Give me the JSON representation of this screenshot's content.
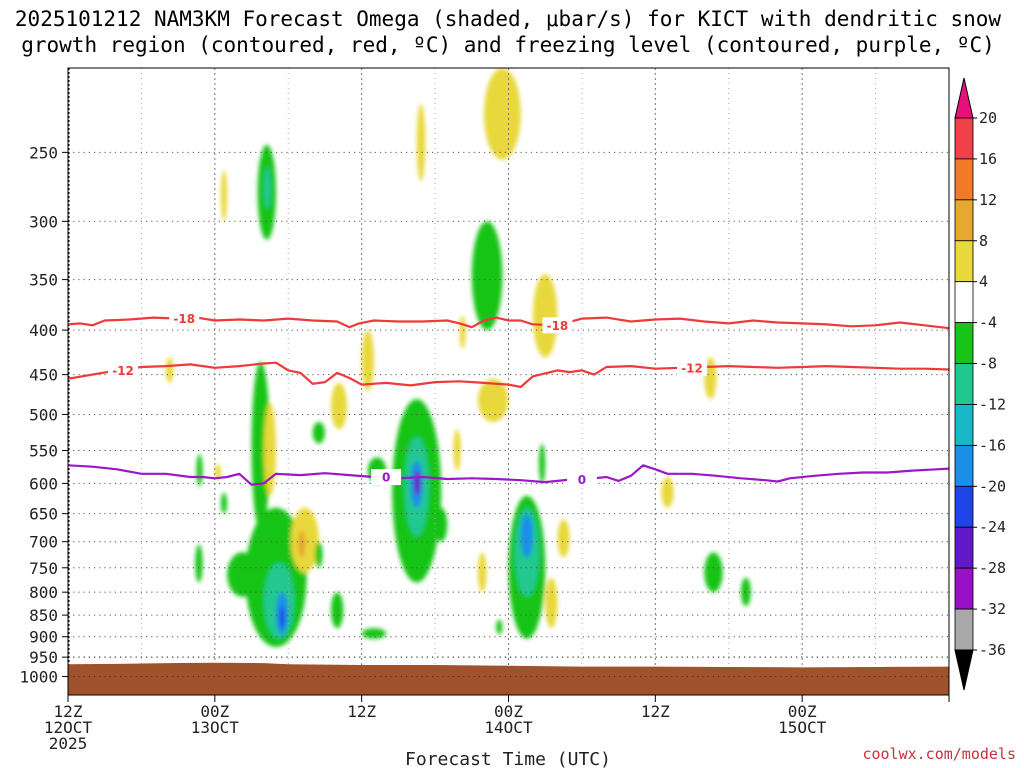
{
  "title": {
    "line1": "2025101212 NAM3KM Forecast Omega (shaded, μbar/s) for KICT with dendritic snow",
    "line2": "growth region (contoured, red, ºC) and freezing level (contoured, purple, ºC)"
  },
  "credit": "coolwx.com/models",
  "chart_data": {
    "type": "heatmap",
    "xlabel": "Forecast Time (UTC)",
    "x_axis": {
      "range_hours": [
        0,
        72
      ],
      "ticks": [
        {
          "hour": 0,
          "lines": [
            "12Z",
            "12OCT",
            "2025"
          ]
        },
        {
          "hour": 12,
          "lines": [
            "00Z",
            "13OCT"
          ]
        },
        {
          "hour": 24,
          "lines": [
            "12Z"
          ]
        },
        {
          "hour": 36,
          "lines": [
            "00Z",
            "14OCT"
          ]
        },
        {
          "hour": 48,
          "lines": [
            "12Z"
          ]
        },
        {
          "hour": 60,
          "lines": [
            "00Z",
            "15OCT"
          ]
        }
      ],
      "minor_grid_every_hours": 6
    },
    "y_axis": {
      "unit": "hPa",
      "range": [
        200,
        1050
      ],
      "log_scale": true,
      "inverted": true,
      "ticks": [
        250,
        300,
        350,
        400,
        450,
        500,
        550,
        600,
        650,
        700,
        750,
        800,
        850,
        900,
        950,
        1000
      ]
    },
    "grid": true,
    "colorbar": {
      "levels": [
        -36,
        -32,
        -28,
        -24,
        -20,
        -16,
        -12,
        -8,
        -4,
        4,
        8,
        12,
        16,
        20
      ],
      "label_values": [
        "20",
        "16",
        "12",
        "8",
        "4",
        "-4",
        "-8",
        "-12",
        "-16",
        "-20",
        "-24",
        "-28",
        "-32",
        "-36"
      ],
      "bins_top_to_bottom": [
        {
          "range": [
            16,
            20
          ],
          "color": "#f0404a"
        },
        {
          "range": [
            12,
            16
          ],
          "color": "#f07a28"
        },
        {
          "range": [
            8,
            12
          ],
          "color": "#e6a82e"
        },
        {
          "range": [
            4,
            8
          ],
          "color": "#e8d83a"
        },
        {
          "range": [
            -4,
            4
          ],
          "color": "#ffffff"
        },
        {
          "range": [
            -8,
            -4
          ],
          "color": "#18c418"
        },
        {
          "range": [
            -12,
            -8
          ],
          "color": "#20c890"
        },
        {
          "range": [
            -16,
            -12
          ],
          "color": "#18b8c8"
        },
        {
          "range": [
            -20,
            -16
          ],
          "color": "#1a8ee8"
        },
        {
          "range": [
            -24,
            -20
          ],
          "color": "#1f44e8"
        },
        {
          "range": [
            -28,
            -24
          ],
          "color": "#6018c8"
        },
        {
          "range": [
            -32,
            -28
          ],
          "color": "#9a10c4"
        },
        {
          "range": [
            -36,
            -32
          ],
          "color": "#a8a8a8"
        }
      ],
      "over_color": "#e8107a",
      "under_color": "#000000"
    },
    "contours": [
      {
        "level_label": "-18",
        "color": "#ee3a3a",
        "label_positions_hours": [
          9.5,
          40
        ],
        "points": [
          [
            0,
            394
          ],
          [
            1,
            393
          ],
          [
            2,
            395
          ],
          [
            3,
            390
          ],
          [
            5,
            389
          ],
          [
            7,
            387
          ],
          [
            9,
            388
          ],
          [
            10,
            386
          ],
          [
            12,
            390
          ],
          [
            14,
            389
          ],
          [
            16,
            390
          ],
          [
            18,
            388
          ],
          [
            20,
            390
          ],
          [
            22,
            391
          ],
          [
            23,
            397
          ],
          [
            23.8,
            393
          ],
          [
            25,
            390
          ],
          [
            27,
            391
          ],
          [
            29,
            391
          ],
          [
            31,
            390
          ],
          [
            32,
            393
          ],
          [
            33,
            397
          ],
          [
            34,
            390
          ],
          [
            35,
            387
          ],
          [
            36,
            390
          ],
          [
            37,
            390
          ],
          [
            38,
            394
          ],
          [
            40,
            395
          ],
          [
            42,
            388
          ],
          [
            44,
            387
          ],
          [
            46,
            391
          ],
          [
            48,
            389
          ],
          [
            50,
            388
          ],
          [
            52,
            391
          ],
          [
            54,
            393
          ],
          [
            56,
            390
          ],
          [
            58,
            392
          ],
          [
            60,
            393
          ],
          [
            62,
            394
          ],
          [
            64,
            396
          ],
          [
            66,
            395
          ],
          [
            68,
            392
          ],
          [
            70,
            395
          ],
          [
            72,
            398
          ]
        ]
      },
      {
        "level_label": "-12",
        "color": "#ee3a3a",
        "label_positions_hours": [
          4.5,
          51
        ],
        "points": [
          [
            0,
            455
          ],
          [
            2,
            450
          ],
          [
            4,
            445
          ],
          [
            6,
            441
          ],
          [
            8,
            440
          ],
          [
            10,
            438
          ],
          [
            12,
            442
          ],
          [
            14,
            440
          ],
          [
            16,
            437
          ],
          [
            17,
            436
          ],
          [
            18,
            445
          ],
          [
            19,
            448
          ],
          [
            20,
            461
          ],
          [
            21,
            459
          ],
          [
            22,
            448
          ],
          [
            23,
            454
          ],
          [
            24,
            462
          ],
          [
            26,
            460
          ],
          [
            28,
            463
          ],
          [
            30,
            459
          ],
          [
            32,
            458
          ],
          [
            34,
            460
          ],
          [
            36,
            462
          ],
          [
            37,
            465
          ],
          [
            38,
            452
          ],
          [
            40,
            445
          ],
          [
            41,
            447
          ],
          [
            42,
            445
          ],
          [
            43,
            450
          ],
          [
            44,
            441
          ],
          [
            46,
            440
          ],
          [
            48,
            443
          ],
          [
            50,
            442
          ],
          [
            52,
            441
          ],
          [
            54,
            440
          ],
          [
            56,
            441
          ],
          [
            58,
            442
          ],
          [
            60,
            441
          ],
          [
            62,
            440
          ],
          [
            64,
            441
          ],
          [
            66,
            442
          ],
          [
            68,
            443
          ],
          [
            70,
            443
          ],
          [
            72,
            444
          ]
        ]
      },
      {
        "level_label": "0",
        "color": "#9a18c8",
        "label_positions_hours": [
          26,
          42
        ],
        "points": [
          [
            0,
            572
          ],
          [
            2,
            574
          ],
          [
            4,
            578
          ],
          [
            6,
            585
          ],
          [
            8,
            585
          ],
          [
            10,
            590
          ],
          [
            11,
            590
          ],
          [
            12,
            592
          ],
          [
            13,
            590
          ],
          [
            14,
            585
          ],
          [
            15,
            602
          ],
          [
            16,
            600
          ],
          [
            17,
            585
          ],
          [
            19,
            587
          ],
          [
            21,
            584
          ],
          [
            23,
            587
          ],
          [
            25,
            590
          ],
          [
            27,
            592
          ],
          [
            29,
            590
          ],
          [
            31,
            593
          ],
          [
            33,
            592
          ],
          [
            35,
            593
          ],
          [
            37,
            595
          ],
          [
            39,
            598
          ],
          [
            41,
            594
          ],
          [
            43,
            592
          ],
          [
            44,
            590
          ],
          [
            45,
            596
          ],
          [
            46,
            588
          ],
          [
            47,
            572
          ],
          [
            48,
            578
          ],
          [
            49,
            585
          ],
          [
            51,
            585
          ],
          [
            53,
            588
          ],
          [
            55,
            592
          ],
          [
            57,
            595
          ],
          [
            58,
            597
          ],
          [
            59,
            592
          ],
          [
            61,
            588
          ],
          [
            63,
            585
          ],
          [
            65,
            583
          ],
          [
            67,
            583
          ],
          [
            69,
            580
          ],
          [
            71,
            578
          ],
          [
            72,
            577
          ]
        ]
      }
    ],
    "terrain": {
      "color": "#a0522d",
      "description_points_hpa": [
        [
          0,
          968
        ],
        [
          4,
          967
        ],
        [
          8,
          965
        ],
        [
          12,
          964
        ],
        [
          16,
          965
        ],
        [
          18,
          968
        ],
        [
          24,
          970
        ],
        [
          30,
          970
        ],
        [
          36,
          972
        ],
        [
          42,
          974
        ],
        [
          48,
          974
        ],
        [
          54,
          975
        ],
        [
          60,
          976
        ],
        [
          66,
          975
        ],
        [
          72,
          974
        ]
      ]
    },
    "omega_features": [
      {
        "hours": [
          12.5,
          13.0
        ],
        "p": [
          262,
          300
        ],
        "omega": 5
      },
      {
        "hours": [
          15.5,
          17.0
        ],
        "p": [
          245,
          315
        ],
        "omega": -6
      },
      {
        "hours": [
          16.0,
          16.6
        ],
        "p": [
          260,
          290
        ],
        "omega": -10
      },
      {
        "hours": [
          34.0,
          37.0
        ],
        "p": [
          200,
          255
        ],
        "omega": 5
      },
      {
        "hours": [
          28.5,
          29.2
        ],
        "p": [
          220,
          270
        ],
        "omega": 5
      },
      {
        "hours": [
          33.0,
          35.5
        ],
        "p": [
          300,
          400
        ],
        "omega": -6
      },
      {
        "hours": [
          38.0,
          40.0
        ],
        "p": [
          345,
          430
        ],
        "omega": 5
      },
      {
        "hours": [
          32.0,
          32.5
        ],
        "p": [
          385,
          420
        ],
        "omega": 5
      },
      {
        "hours": [
          33.5,
          36.0
        ],
        "p": [
          455,
          510
        ],
        "omega": 5
      },
      {
        "hours": [
          15.0,
          16.5
        ],
        "p": [
          435,
          680
        ],
        "omega": -6
      },
      {
        "hours": [
          16.0,
          17.0
        ],
        "p": [
          485,
          620
        ],
        "omega": 5
      },
      {
        "hours": [
          14.5,
          19.5
        ],
        "p": [
          640,
          925
        ],
        "omega": -6
      },
      {
        "hours": [
          16.0,
          18.5
        ],
        "p": [
          740,
          905
        ],
        "omega": -10
      },
      {
        "hours": [
          17.0,
          18.0
        ],
        "p": [
          800,
          895
        ],
        "omega": -18
      },
      {
        "hours": [
          17.3,
          17.7
        ],
        "p": [
          830,
          880
        ],
        "omega": -24
      },
      {
        "hours": [
          18.2,
          20.5
        ],
        "p": [
          640,
          760
        ],
        "omega": 5
      },
      {
        "hours": [
          18.8,
          19.4
        ],
        "p": [
          680,
          730
        ],
        "omega": 9
      },
      {
        "hours": [
          20.0,
          21.0
        ],
        "p": [
          510,
          540
        ],
        "omega": -6
      },
      {
        "hours": [
          20.2,
          20.8
        ],
        "p": [
          700,
          750
        ],
        "omega": -6
      },
      {
        "hours": [
          21.5,
          22.8
        ],
        "p": [
          460,
          520
        ],
        "omega": 5
      },
      {
        "hours": [
          21.5,
          22.5
        ],
        "p": [
          800,
          880
        ],
        "omega": -6
      },
      {
        "hours": [
          24.0,
          25.0
        ],
        "p": [
          400,
          470
        ],
        "omega": 5
      },
      {
        "hours": [
          24.5,
          26.0
        ],
        "p": [
          560,
          600
        ],
        "omega": -6
      },
      {
        "hours": [
          24.0,
          26.0
        ],
        "p": [
          880,
          905
        ],
        "omega": -6
      },
      {
        "hours": [
          10.5,
          11.0
        ],
        "p": [
          555,
          605
        ],
        "omega": -6
      },
      {
        "hours": [
          12.0,
          12.5
        ],
        "p": [
          570,
          595
        ],
        "omega": 5
      },
      {
        "hours": [
          12.5,
          13.0
        ],
        "p": [
          615,
          650
        ],
        "omega": -6
      },
      {
        "hours": [
          10.4,
          11.0
        ],
        "p": [
          705,
          780
        ],
        "omega": -6
      },
      {
        "hours": [
          13.0,
          15.5
        ],
        "p": [
          720,
          810
        ],
        "omega": -6
      },
      {
        "hours": [
          26.5,
          30.5
        ],
        "p": [
          480,
          780
        ],
        "omega": -6
      },
      {
        "hours": [
          27.5,
          29.5
        ],
        "p": [
          530,
          690
        ],
        "omega": -10
      },
      {
        "hours": [
          28.0,
          29.0
        ],
        "p": [
          565,
          640
        ],
        "omega": -17
      },
      {
        "hours": [
          28.3,
          28.8
        ],
        "p": [
          580,
          620
        ],
        "omega": -26
      },
      {
        "hours": [
          31.5,
          32.1
        ],
        "p": [
          520,
          580
        ],
        "omega": 5
      },
      {
        "hours": [
          30.0,
          31.0
        ],
        "p": [
          640,
          700
        ],
        "omega": -6
      },
      {
        "hours": [
          33.5,
          34.2
        ],
        "p": [
          720,
          800
        ],
        "omega": 5
      },
      {
        "hours": [
          35.0,
          35.5
        ],
        "p": [
          860,
          895
        ],
        "omega": -6
      },
      {
        "hours": [
          36.0,
          39.0
        ],
        "p": [
          620,
          905
        ],
        "omega": -6
      },
      {
        "hours": [
          36.5,
          38.5
        ],
        "p": [
          640,
          810
        ],
        "omega": -10
      },
      {
        "hours": [
          37.0,
          38.0
        ],
        "p": [
          650,
          730
        ],
        "omega": -18
      },
      {
        "hours": [
          38.5,
          39.0
        ],
        "p": [
          540,
          600
        ],
        "omega": -6
      },
      {
        "hours": [
          39.0,
          40.0
        ],
        "p": [
          770,
          880
        ],
        "omega": 5
      },
      {
        "hours": [
          40.0,
          41.0
        ],
        "p": [
          660,
          730
        ],
        "omega": 5
      },
      {
        "hours": [
          52.0,
          53.0
        ],
        "p": [
          430,
          480
        ],
        "omega": 5
      },
      {
        "hours": [
          52.0,
          53.5
        ],
        "p": [
          720,
          800
        ],
        "omega": -6
      },
      {
        "hours": [
          55.0,
          55.8
        ],
        "p": [
          770,
          830
        ],
        "omega": -6
      },
      {
        "hours": [
          48.5,
          49.5
        ],
        "p": [
          590,
          640
        ],
        "omega": 5
      },
      {
        "hours": [
          8.0,
          8.6
        ],
        "p": [
          430,
          460
        ],
        "omega": 5
      }
    ]
  }
}
